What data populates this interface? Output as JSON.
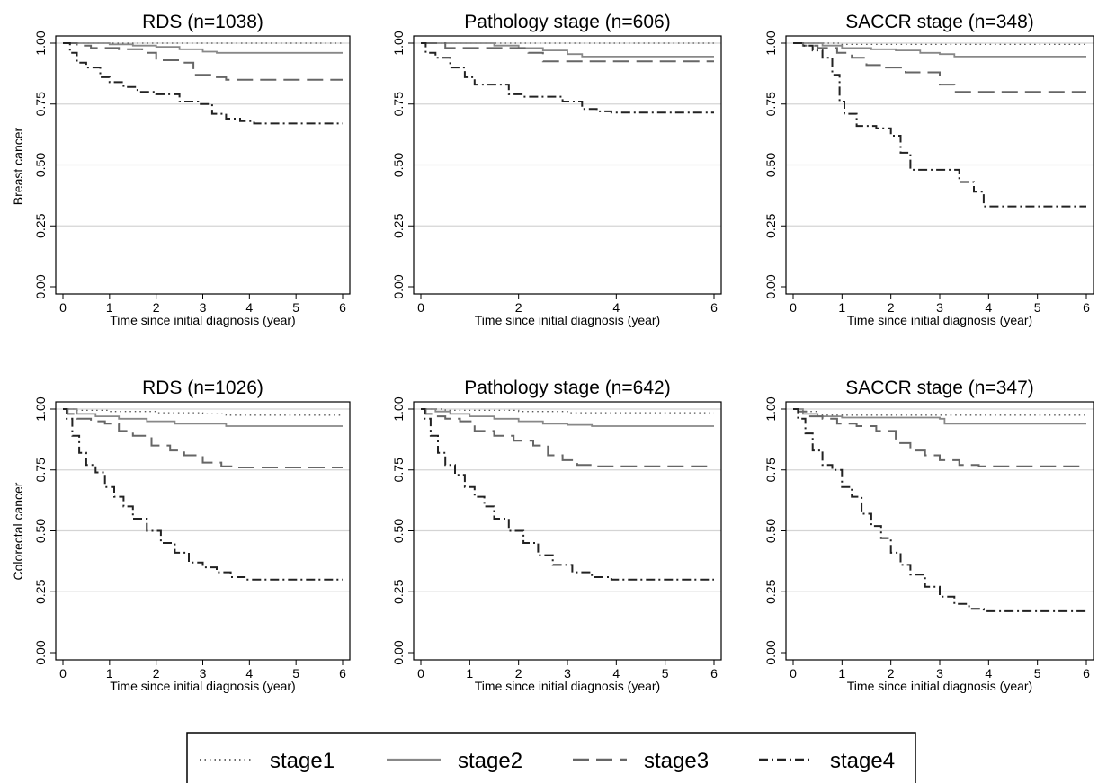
{
  "figure": {
    "row_labels": [
      "Breast cancer",
      "Colorectal cancer"
    ],
    "x_axis_label": "Time since initial diagnosis (year)",
    "y_ticks": [
      "0.00",
      "0.25",
      "0.50",
      "0.75",
      "1.00"
    ],
    "legend": [
      {
        "name": "stage1",
        "style": "dotted",
        "color": "#555555"
      },
      {
        "name": "stage2",
        "style": "solid",
        "color": "#888888"
      },
      {
        "name": "stage3",
        "style": "dashed",
        "color": "#666666"
      },
      {
        "name": "stage4",
        "style": "dashdot",
        "color": "#222222"
      }
    ]
  },
  "chart_data": [
    {
      "type": "line",
      "panel": "breast-rds",
      "title": "RDS (n=1038)",
      "xlabel": "Time since initial diagnosis (year)",
      "ylabel": "Breast cancer",
      "xlim": [
        0,
        6
      ],
      "ylim": [
        0,
        1
      ],
      "xticks": [
        0,
        1,
        2,
        3,
        4,
        5,
        6
      ],
      "grid": "horizontal",
      "series": [
        {
          "name": "stage1",
          "x": [
            0,
            6
          ],
          "y": [
            1.0,
            1.0
          ]
        },
        {
          "name": "stage2",
          "x": [
            0,
            0.5,
            1,
            1.5,
            2,
            2.5,
            3,
            3.3,
            6
          ],
          "y": [
            1.0,
            1.0,
            0.995,
            0.99,
            0.985,
            0.975,
            0.965,
            0.96,
            0.96
          ]
        },
        {
          "name": "stage3",
          "x": [
            0,
            0.3,
            0.6,
            1.2,
            1.7,
            2.0,
            2.5,
            2.8,
            3.2,
            3.5,
            6
          ],
          "y": [
            1.0,
            0.99,
            0.98,
            0.975,
            0.96,
            0.93,
            0.92,
            0.87,
            0.86,
            0.85,
            0.85
          ]
        },
        {
          "name": "stage4",
          "x": [
            0,
            0.15,
            0.3,
            0.5,
            0.8,
            1.0,
            1.3,
            1.6,
            2.0,
            2.5,
            2.9,
            3.2,
            3.5,
            3.8,
            4.1,
            6
          ],
          "y": [
            1.0,
            0.96,
            0.92,
            0.9,
            0.86,
            0.84,
            0.82,
            0.8,
            0.79,
            0.76,
            0.75,
            0.71,
            0.69,
            0.68,
            0.67,
            0.67
          ]
        }
      ]
    },
    {
      "type": "line",
      "panel": "breast-pathology",
      "title": "Pathology stage (n=606)",
      "xlabel": "Time since initial diagnosis (year)",
      "ylabel": "",
      "xlim": [
        0,
        6
      ],
      "ylim": [
        0,
        1
      ],
      "xticks": [
        0,
        2,
        4,
        6
      ],
      "grid": "horizontal",
      "series": [
        {
          "name": "stage1",
          "x": [
            0,
            6
          ],
          "y": [
            1.0,
            1.0
          ]
        },
        {
          "name": "stage2",
          "x": [
            0,
            1,
            1.5,
            2,
            2.5,
            3,
            3.3,
            6
          ],
          "y": [
            1.0,
            1.0,
            0.99,
            0.98,
            0.97,
            0.955,
            0.945,
            0.945
          ]
        },
        {
          "name": "stage3",
          "x": [
            0,
            0.5,
            1.5,
            2.2,
            2.5,
            6
          ],
          "y": [
            1.0,
            0.98,
            0.98,
            0.96,
            0.925,
            0.925
          ]
        },
        {
          "name": "stage4",
          "x": [
            0,
            0.1,
            0.3,
            0.6,
            0.9,
            1.1,
            1.4,
            1.8,
            2.1,
            2.5,
            2.9,
            3.3,
            3.6,
            3.9,
            6
          ],
          "y": [
            1.0,
            0.96,
            0.94,
            0.9,
            0.86,
            0.83,
            0.83,
            0.79,
            0.78,
            0.78,
            0.76,
            0.73,
            0.72,
            0.715,
            0.715
          ]
        }
      ]
    },
    {
      "type": "line",
      "panel": "breast-saccr",
      "title": "SACCR stage (n=348)",
      "xlabel": "Time since initial diagnosis (year)",
      "ylabel": "",
      "xlim": [
        0,
        6
      ],
      "ylim": [
        0,
        1
      ],
      "xticks": [
        0,
        1,
        2,
        3,
        4,
        5,
        6
      ],
      "grid": "horizontal",
      "series": [
        {
          "name": "stage1",
          "x": [
            0,
            0.5,
            1,
            6
          ],
          "y": [
            1.0,
            1.0,
            0.995,
            0.995
          ]
        },
        {
          "name": "stage2",
          "x": [
            0,
            0.6,
            1.0,
            1.6,
            2.1,
            2.6,
            3.0,
            3.3,
            6
          ],
          "y": [
            1.0,
            0.99,
            0.98,
            0.975,
            0.97,
            0.96,
            0.955,
            0.945,
            0.945
          ]
        },
        {
          "name": "stage3",
          "x": [
            0,
            0.2,
            0.5,
            0.9,
            1.2,
            1.5,
            1.9,
            2.3,
            2.6,
            3.0,
            3.3,
            6
          ],
          "y": [
            1.0,
            0.99,
            0.98,
            0.96,
            0.94,
            0.91,
            0.9,
            0.88,
            0.88,
            0.83,
            0.8,
            0.8
          ]
        },
        {
          "name": "stage4",
          "x": [
            0,
            0.2,
            0.4,
            0.6,
            0.8,
            0.95,
            1.05,
            1.3,
            1.7,
            2.0,
            2.2,
            2.4,
            2.8,
            3.2,
            3.4,
            3.7,
            3.9,
            6
          ],
          "y": [
            1.0,
            0.99,
            0.97,
            0.94,
            0.87,
            0.76,
            0.71,
            0.66,
            0.65,
            0.62,
            0.55,
            0.48,
            0.48,
            0.48,
            0.43,
            0.39,
            0.33,
            0.33
          ]
        }
      ]
    },
    {
      "type": "line",
      "panel": "colorectal-rds",
      "title": "RDS (n=1026)",
      "xlabel": "Time since initial diagnosis (year)",
      "ylabel": "Colorectal cancer",
      "xlim": [
        0,
        6
      ],
      "ylim": [
        0,
        1
      ],
      "xticks": [
        0,
        1,
        2,
        3,
        4,
        5,
        6
      ],
      "grid": "horizontal",
      "series": [
        {
          "name": "stage1",
          "x": [
            0,
            0.3,
            1,
            2,
            3,
            3.5,
            6
          ],
          "y": [
            1.0,
            0.995,
            0.99,
            0.985,
            0.98,
            0.975,
            0.975
          ]
        },
        {
          "name": "stage2",
          "x": [
            0,
            0.3,
            0.7,
            1.2,
            1.8,
            2.4,
            3.0,
            3.5,
            6
          ],
          "y": [
            1.0,
            0.98,
            0.97,
            0.96,
            0.95,
            0.94,
            0.94,
            0.93,
            0.93
          ]
        },
        {
          "name": "stage3",
          "x": [
            0,
            0.1,
            0.3,
            0.6,
            0.9,
            1.2,
            1.5,
            1.9,
            2.3,
            2.6,
            3.0,
            3.4,
            3.7,
            6
          ],
          "y": [
            1.0,
            0.98,
            0.96,
            0.95,
            0.94,
            0.91,
            0.89,
            0.85,
            0.83,
            0.81,
            0.78,
            0.765,
            0.76,
            0.76
          ]
        },
        {
          "name": "stage4",
          "x": [
            0,
            0.08,
            0.2,
            0.35,
            0.5,
            0.7,
            0.9,
            1.1,
            1.3,
            1.5,
            1.8,
            2.1,
            2.4,
            2.7,
            3.0,
            3.3,
            3.6,
            3.9,
            6
          ],
          "y": [
            1.0,
            0.96,
            0.89,
            0.82,
            0.77,
            0.74,
            0.68,
            0.64,
            0.6,
            0.55,
            0.5,
            0.45,
            0.41,
            0.37,
            0.35,
            0.33,
            0.31,
            0.3,
            0.3
          ]
        }
      ]
    },
    {
      "type": "line",
      "panel": "colorectal-pathology",
      "title": "Pathology stage (n=642)",
      "xlabel": "Time since initial diagnosis (year)",
      "ylabel": "",
      "xlim": [
        0,
        6
      ],
      "ylim": [
        0,
        1
      ],
      "xticks": [
        0,
        1,
        2,
        3,
        4,
        5,
        6
      ],
      "grid": "horizontal",
      "series": [
        {
          "name": "stage1",
          "x": [
            0,
            0.5,
            2,
            3,
            6
          ],
          "y": [
            1.0,
            0.995,
            0.99,
            0.985,
            0.985
          ]
        },
        {
          "name": "stage2",
          "x": [
            0,
            0.3,
            0.6,
            1.0,
            1.5,
            2.0,
            2.5,
            3.0,
            3.5,
            6
          ],
          "y": [
            1.0,
            0.99,
            0.98,
            0.97,
            0.96,
            0.95,
            0.94,
            0.935,
            0.93,
            0.93
          ]
        },
        {
          "name": "stage3",
          "x": [
            0,
            0.1,
            0.3,
            0.5,
            0.8,
            1.1,
            1.5,
            1.9,
            2.3,
            2.6,
            2.9,
            3.2,
            3.6,
            6
          ],
          "y": [
            1.0,
            0.98,
            0.97,
            0.96,
            0.95,
            0.91,
            0.89,
            0.87,
            0.85,
            0.81,
            0.79,
            0.77,
            0.765,
            0.765
          ]
        },
        {
          "name": "stage4",
          "x": [
            0,
            0.08,
            0.2,
            0.35,
            0.5,
            0.7,
            0.9,
            1.1,
            1.3,
            1.5,
            1.8,
            2.1,
            2.4,
            2.7,
            3.1,
            3.5,
            3.9,
            6
          ],
          "y": [
            1.0,
            0.96,
            0.89,
            0.82,
            0.77,
            0.73,
            0.68,
            0.64,
            0.6,
            0.55,
            0.5,
            0.45,
            0.4,
            0.36,
            0.33,
            0.31,
            0.3,
            0.3
          ]
        }
      ]
    },
    {
      "type": "line",
      "panel": "colorectal-saccr",
      "title": "SACCR stage (n=347)",
      "xlabel": "Time since initial diagnosis (year)",
      "ylabel": "",
      "xlim": [
        0,
        6
      ],
      "ylim": [
        0,
        1
      ],
      "xticks": [
        0,
        1,
        2,
        3,
        4,
        5,
        6
      ],
      "grid": "horizontal",
      "series": [
        {
          "name": "stage1",
          "x": [
            0,
            0.2,
            0.5,
            6
          ],
          "y": [
            1.0,
            0.99,
            0.975,
            0.975
          ]
        },
        {
          "name": "stage2",
          "x": [
            0,
            0.2,
            0.5,
            1.0,
            2.0,
            3.0,
            3.1,
            6
          ],
          "y": [
            1.0,
            0.98,
            0.97,
            0.965,
            0.965,
            0.96,
            0.94,
            0.94
          ]
        },
        {
          "name": "stage3",
          "x": [
            0,
            0.1,
            0.3,
            0.6,
            0.9,
            1.3,
            1.7,
            2.1,
            2.4,
            2.7,
            3.0,
            3.4,
            3.8,
            6
          ],
          "y": [
            1.0,
            0.99,
            0.97,
            0.96,
            0.94,
            0.93,
            0.91,
            0.86,
            0.83,
            0.81,
            0.79,
            0.77,
            0.765,
            0.765
          ]
        },
        {
          "name": "stage4",
          "x": [
            0,
            0.1,
            0.25,
            0.4,
            0.6,
            0.8,
            1.0,
            1.2,
            1.4,
            1.6,
            1.8,
            2.0,
            2.2,
            2.4,
            2.7,
            3.0,
            3.3,
            3.6,
            3.9,
            6
          ],
          "y": [
            1.0,
            0.96,
            0.9,
            0.83,
            0.77,
            0.75,
            0.68,
            0.64,
            0.57,
            0.52,
            0.47,
            0.41,
            0.36,
            0.32,
            0.27,
            0.23,
            0.2,
            0.18,
            0.17,
            0.17
          ]
        }
      ]
    }
  ]
}
